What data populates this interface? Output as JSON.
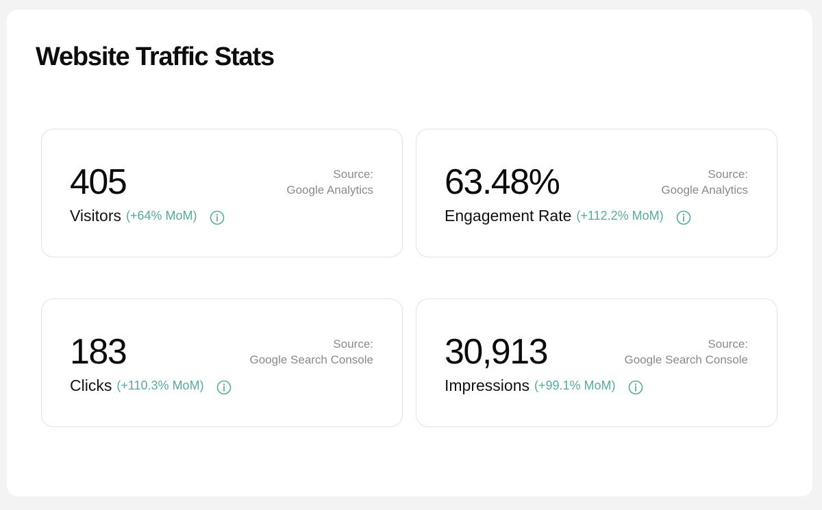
{
  "title": "Website Traffic Stats",
  "accent_color": "#56aa9c",
  "cards": [
    {
      "value": "405",
      "label": "Visitors",
      "change": "(+64% MoM)",
      "source_label": "Source:",
      "source": "Google Analytics",
      "icon": "info-icon"
    },
    {
      "value": "63.48%",
      "label": "Engagement Rate",
      "change": "(+112.2% MoM)",
      "source_label": "Source:",
      "source": "Google Analytics",
      "icon": "info-icon"
    },
    {
      "value": "183",
      "label": "Clicks",
      "change": "(+110.3% MoM)",
      "source_label": "Source:",
      "source": "Google Search Console",
      "icon": "info-icon"
    },
    {
      "value": "30,913",
      "label": "Impressions",
      "change": "(+99.1% MoM)",
      "source_label": "Source:",
      "source": "Google Search Console",
      "icon": "info-icon"
    }
  ]
}
